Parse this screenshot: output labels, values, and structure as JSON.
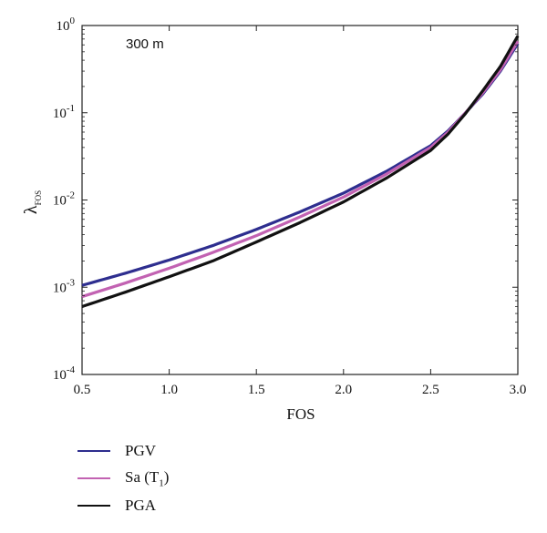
{
  "chart_data": {
    "type": "line",
    "annotation": "300 m",
    "xlabel": "FOS",
    "ylabel": "λ",
    "ylabel_sub": "FOS",
    "xlim": [
      0.5,
      3.0
    ],
    "ylim": [
      0.0001,
      1
    ],
    "yscale": "log",
    "grid": false,
    "legend_position": "below",
    "x_ticks": [
      {
        "value": 0.5,
        "label": "0.5"
      },
      {
        "value": 1.0,
        "label": "1.0"
      },
      {
        "value": 1.5,
        "label": "1.5"
      },
      {
        "value": 2.0,
        "label": "2.0"
      },
      {
        "value": 2.5,
        "label": "2.5"
      },
      {
        "value": 3.0,
        "label": "3.0"
      }
    ],
    "y_ticks": [
      {
        "value": 0.0001,
        "base": "10",
        "exp": "-4"
      },
      {
        "value": 0.001,
        "base": "10",
        "exp": "-3"
      },
      {
        "value": 0.01,
        "base": "10",
        "exp": "-2"
      },
      {
        "value": 0.1,
        "base": "10",
        "exp": "-1"
      },
      {
        "value": 1,
        "base": "10",
        "exp": "0"
      }
    ],
    "x": [
      0.5,
      0.75,
      1.0,
      1.25,
      1.5,
      1.75,
      2.0,
      2.25,
      2.5,
      2.6,
      2.7,
      2.8,
      2.9,
      3.0
    ],
    "series": [
      {
        "name": "PGV",
        "name_sub": "",
        "color": "#2e2e8f",
        "values": [
          0.00105,
          0.00145,
          0.00205,
          0.003,
          0.0046,
          0.0073,
          0.012,
          0.0215,
          0.042,
          0.062,
          0.1,
          0.165,
          0.3,
          0.62
        ]
      },
      {
        "name": "Sa (T",
        "name_sub": "1",
        "name_suffix": ")",
        "color": "#c262b2",
        "values": [
          0.00078,
          0.00112,
          0.00165,
          0.0025,
          0.0039,
          0.0064,
          0.0108,
          0.02,
          0.04,
          0.06,
          0.1,
          0.17,
          0.31,
          0.66
        ]
      },
      {
        "name": "PGA",
        "name_sub": "",
        "color": "#111111",
        "values": [
          0.0006,
          0.00088,
          0.00132,
          0.002,
          0.0033,
          0.0055,
          0.0095,
          0.018,
          0.037,
          0.057,
          0.098,
          0.18,
          0.34,
          0.76
        ]
      }
    ]
  }
}
